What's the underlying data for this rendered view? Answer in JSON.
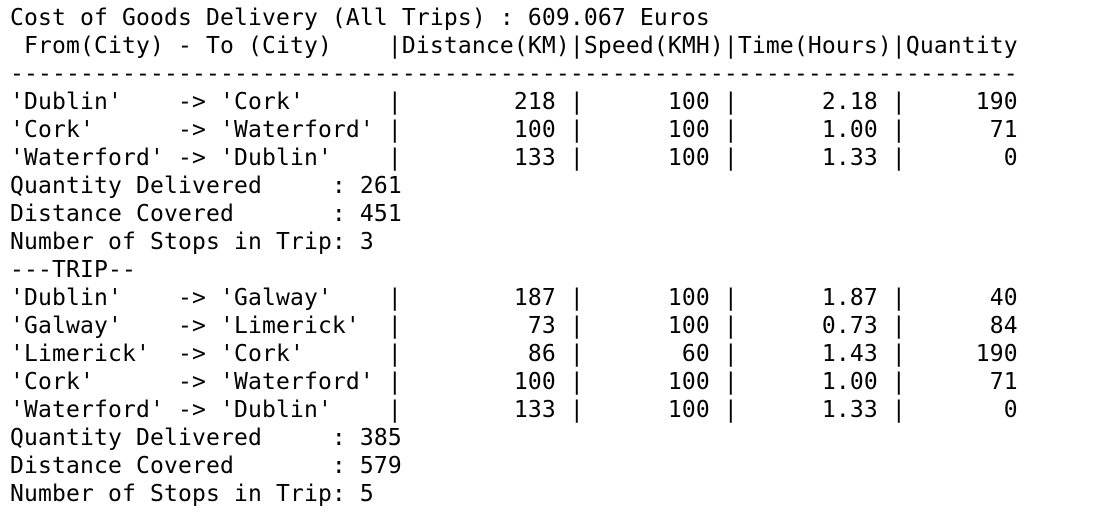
{
  "terminal": {
    "lines": [
      "Cost of Goods Delivery (All Trips) : 609.067 Euros",
      " From(City) - To (City)    |Distance(KM)|Speed(KMH)|Time(Hours)|Quantity",
      "------------------------------------------------------------------------",
      "'Dublin'    -> 'Cork'      |        218 |      100 |      2.18 |     190",
      "'Cork'      -> 'Waterford' |        100 |      100 |      1.00 |      71",
      "'Waterford' -> 'Dublin'    |        133 |      100 |      1.33 |       0",
      "Quantity Delivered     : 261",
      "Distance Covered       : 451",
      "Number of Stops in Trip: 3",
      "---TRIP--",
      "'Dublin'    -> 'Galway'    |        187 |      100 |      1.87 |      40",
      "'Galway'    -> 'Limerick'  |         73 |      100 |      0.73 |      84",
      "'Limerick'  -> 'Cork'      |         86 |       60 |      1.43 |     190",
      "'Cork'      -> 'Waterford' |        100 |      100 |      1.00 |      71",
      "'Waterford' -> 'Dublin'    |        133 |      100 |      1.33 |       0",
      "Quantity Delivered     : 385",
      "Distance Covered       : 579",
      "Number of Stops in Trip: 5"
    ]
  }
}
